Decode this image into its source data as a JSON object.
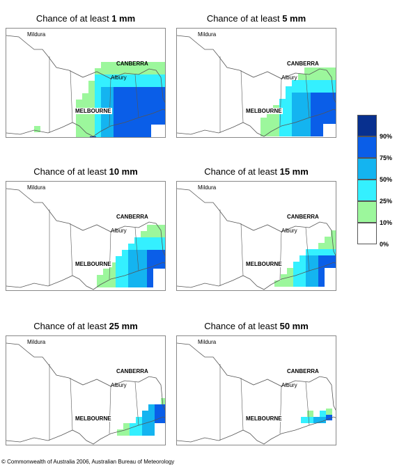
{
  "panels": [
    {
      "prefix": "Chance of at least ",
      "amount": "1 mm",
      "level": 0
    },
    {
      "prefix": "Chance of at least ",
      "amount": "5 mm",
      "level": 1
    },
    {
      "prefix": "Chance of at least ",
      "amount": "10 mm",
      "level": 2
    },
    {
      "prefix": "Chance of at least ",
      "amount": "15 mm",
      "level": 3
    },
    {
      "prefix": "Chance of at least ",
      "amount": "25 mm",
      "level": 4
    },
    {
      "prefix": "Chance of at least ",
      "amount": "50 mm",
      "level": 5
    }
  ],
  "cities": {
    "mildura": "Mildura",
    "canberra": "CANBERRA",
    "albury": "Albury",
    "melbourne": "MELBOURNE"
  },
  "legend": {
    "ticks": [
      "90%",
      "75%",
      "50%",
      "25%",
      "10%",
      "0%"
    ],
    "colors": [
      "#08308f",
      "#0a5ee8",
      "#14b4f0",
      "#34f0ff",
      "#9cf79c",
      "#ffffff"
    ]
  },
  "footer": "© Commonwealth of Australia 2006, Australian Bureau of Meteorology"
}
